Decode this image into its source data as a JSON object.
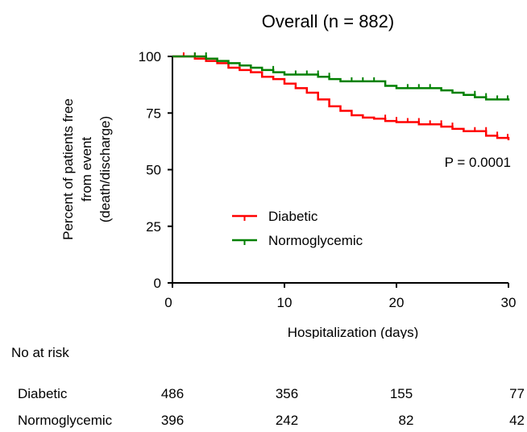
{
  "chart_data": {
    "type": "line",
    "step": true,
    "title": "Overall (n = 882)",
    "xlabel": "Hospitalization (days)",
    "ylabel_lines": [
      "Percent of patients free",
      "from event",
      "(death/discharge)"
    ],
    "xlim": [
      0,
      30
    ],
    "ylim": [
      0,
      100
    ],
    "x_ticks": [
      0,
      10,
      20,
      30
    ],
    "y_ticks": [
      0,
      25,
      50,
      75,
      100
    ],
    "grid": false,
    "legend_position": "center",
    "annotation": "P = 0.0001",
    "series": [
      {
        "name": "Diabetic",
        "color": "#ff0000",
        "points": [
          [
            0,
            100
          ],
          [
            2,
            99
          ],
          [
            3,
            98
          ],
          [
            4,
            97
          ],
          [
            5,
            95
          ],
          [
            6,
            94
          ],
          [
            7,
            93
          ],
          [
            8,
            91
          ],
          [
            9,
            90
          ],
          [
            10,
            88
          ],
          [
            11,
            86
          ],
          [
            12,
            84
          ],
          [
            13,
            81
          ],
          [
            14,
            78
          ],
          [
            15,
            76
          ],
          [
            16,
            74
          ],
          [
            17,
            73
          ],
          [
            18,
            72.5
          ],
          [
            19,
            71.5
          ],
          [
            20,
            71
          ],
          [
            22,
            70
          ],
          [
            24,
            69
          ],
          [
            25,
            68
          ],
          [
            26,
            67
          ],
          [
            28,
            65
          ],
          [
            29,
            64
          ],
          [
            30,
            63
          ]
        ],
        "censor_x": [
          1,
          2,
          19,
          20,
          21,
          22,
          23,
          24,
          25,
          27,
          28,
          29,
          30
        ]
      },
      {
        "name": "Normoglycemic",
        "color": "#008000",
        "points": [
          [
            0,
            100
          ],
          [
            3,
            99
          ],
          [
            4,
            98
          ],
          [
            5,
            97
          ],
          [
            6,
            96
          ],
          [
            7,
            95
          ],
          [
            8,
            94
          ],
          [
            9,
            93
          ],
          [
            10,
            92
          ],
          [
            13,
            91
          ],
          [
            14,
            90
          ],
          [
            15,
            89
          ],
          [
            19,
            87
          ],
          [
            20,
            86
          ],
          [
            24,
            85
          ],
          [
            25,
            84
          ],
          [
            26,
            83
          ],
          [
            27,
            82
          ],
          [
            28,
            81
          ],
          [
            30,
            80.5
          ]
        ],
        "censor_x": [
          2,
          3,
          9,
          11,
          12,
          13,
          14,
          16,
          17,
          18,
          21,
          22,
          23,
          27,
          28,
          29,
          30
        ]
      }
    ]
  },
  "risk_table": {
    "header": "No at risk",
    "timepoints": [
      0,
      10,
      20,
      30
    ],
    "rows": [
      {
        "label": "Diabetic",
        "values": [
          "486",
          "356",
          "155",
          "77"
        ]
      },
      {
        "label": "Normoglycemic",
        "values": [
          "396",
          "242",
          "82",
          "42"
        ]
      }
    ]
  }
}
